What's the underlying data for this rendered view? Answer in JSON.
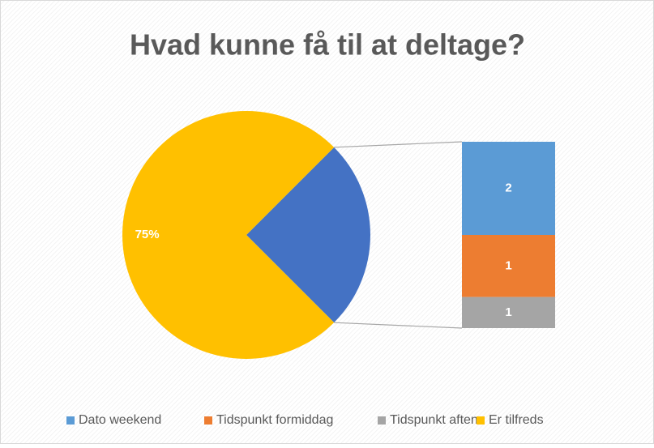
{
  "chart_data": {
    "type": "pie_of_bar",
    "title": "Hvad kunne få til at deltage?",
    "pie": {
      "categories": [
        null,
        "Er tilfreds"
      ],
      "values": [
        25,
        75
      ],
      "value_labels": [
        null,
        "75%"
      ],
      "colors": [
        "#4472c4",
        "#ffc000"
      ]
    },
    "bar": {
      "categories": [
        "Dato weekend",
        "Tidspunkt formiddag",
        "Tidspunkt aften"
      ],
      "values": [
        1.5,
        1,
        0.5
      ],
      "value_labels": [
        "2",
        "1",
        "1"
      ],
      "colors": [
        "#5b9bd5",
        "#ed7d31",
        "#a5a5a5"
      ]
    },
    "legend": {
      "entries": [
        "Dato weekend",
        "Tidspunkt formiddag",
        "Tidspunkt aften",
        "Er tilfreds"
      ],
      "colors": [
        "#5b9bd5",
        "#ed7d31",
        "#a5a5a5",
        "#ffc000"
      ],
      "position": "bottom"
    }
  }
}
